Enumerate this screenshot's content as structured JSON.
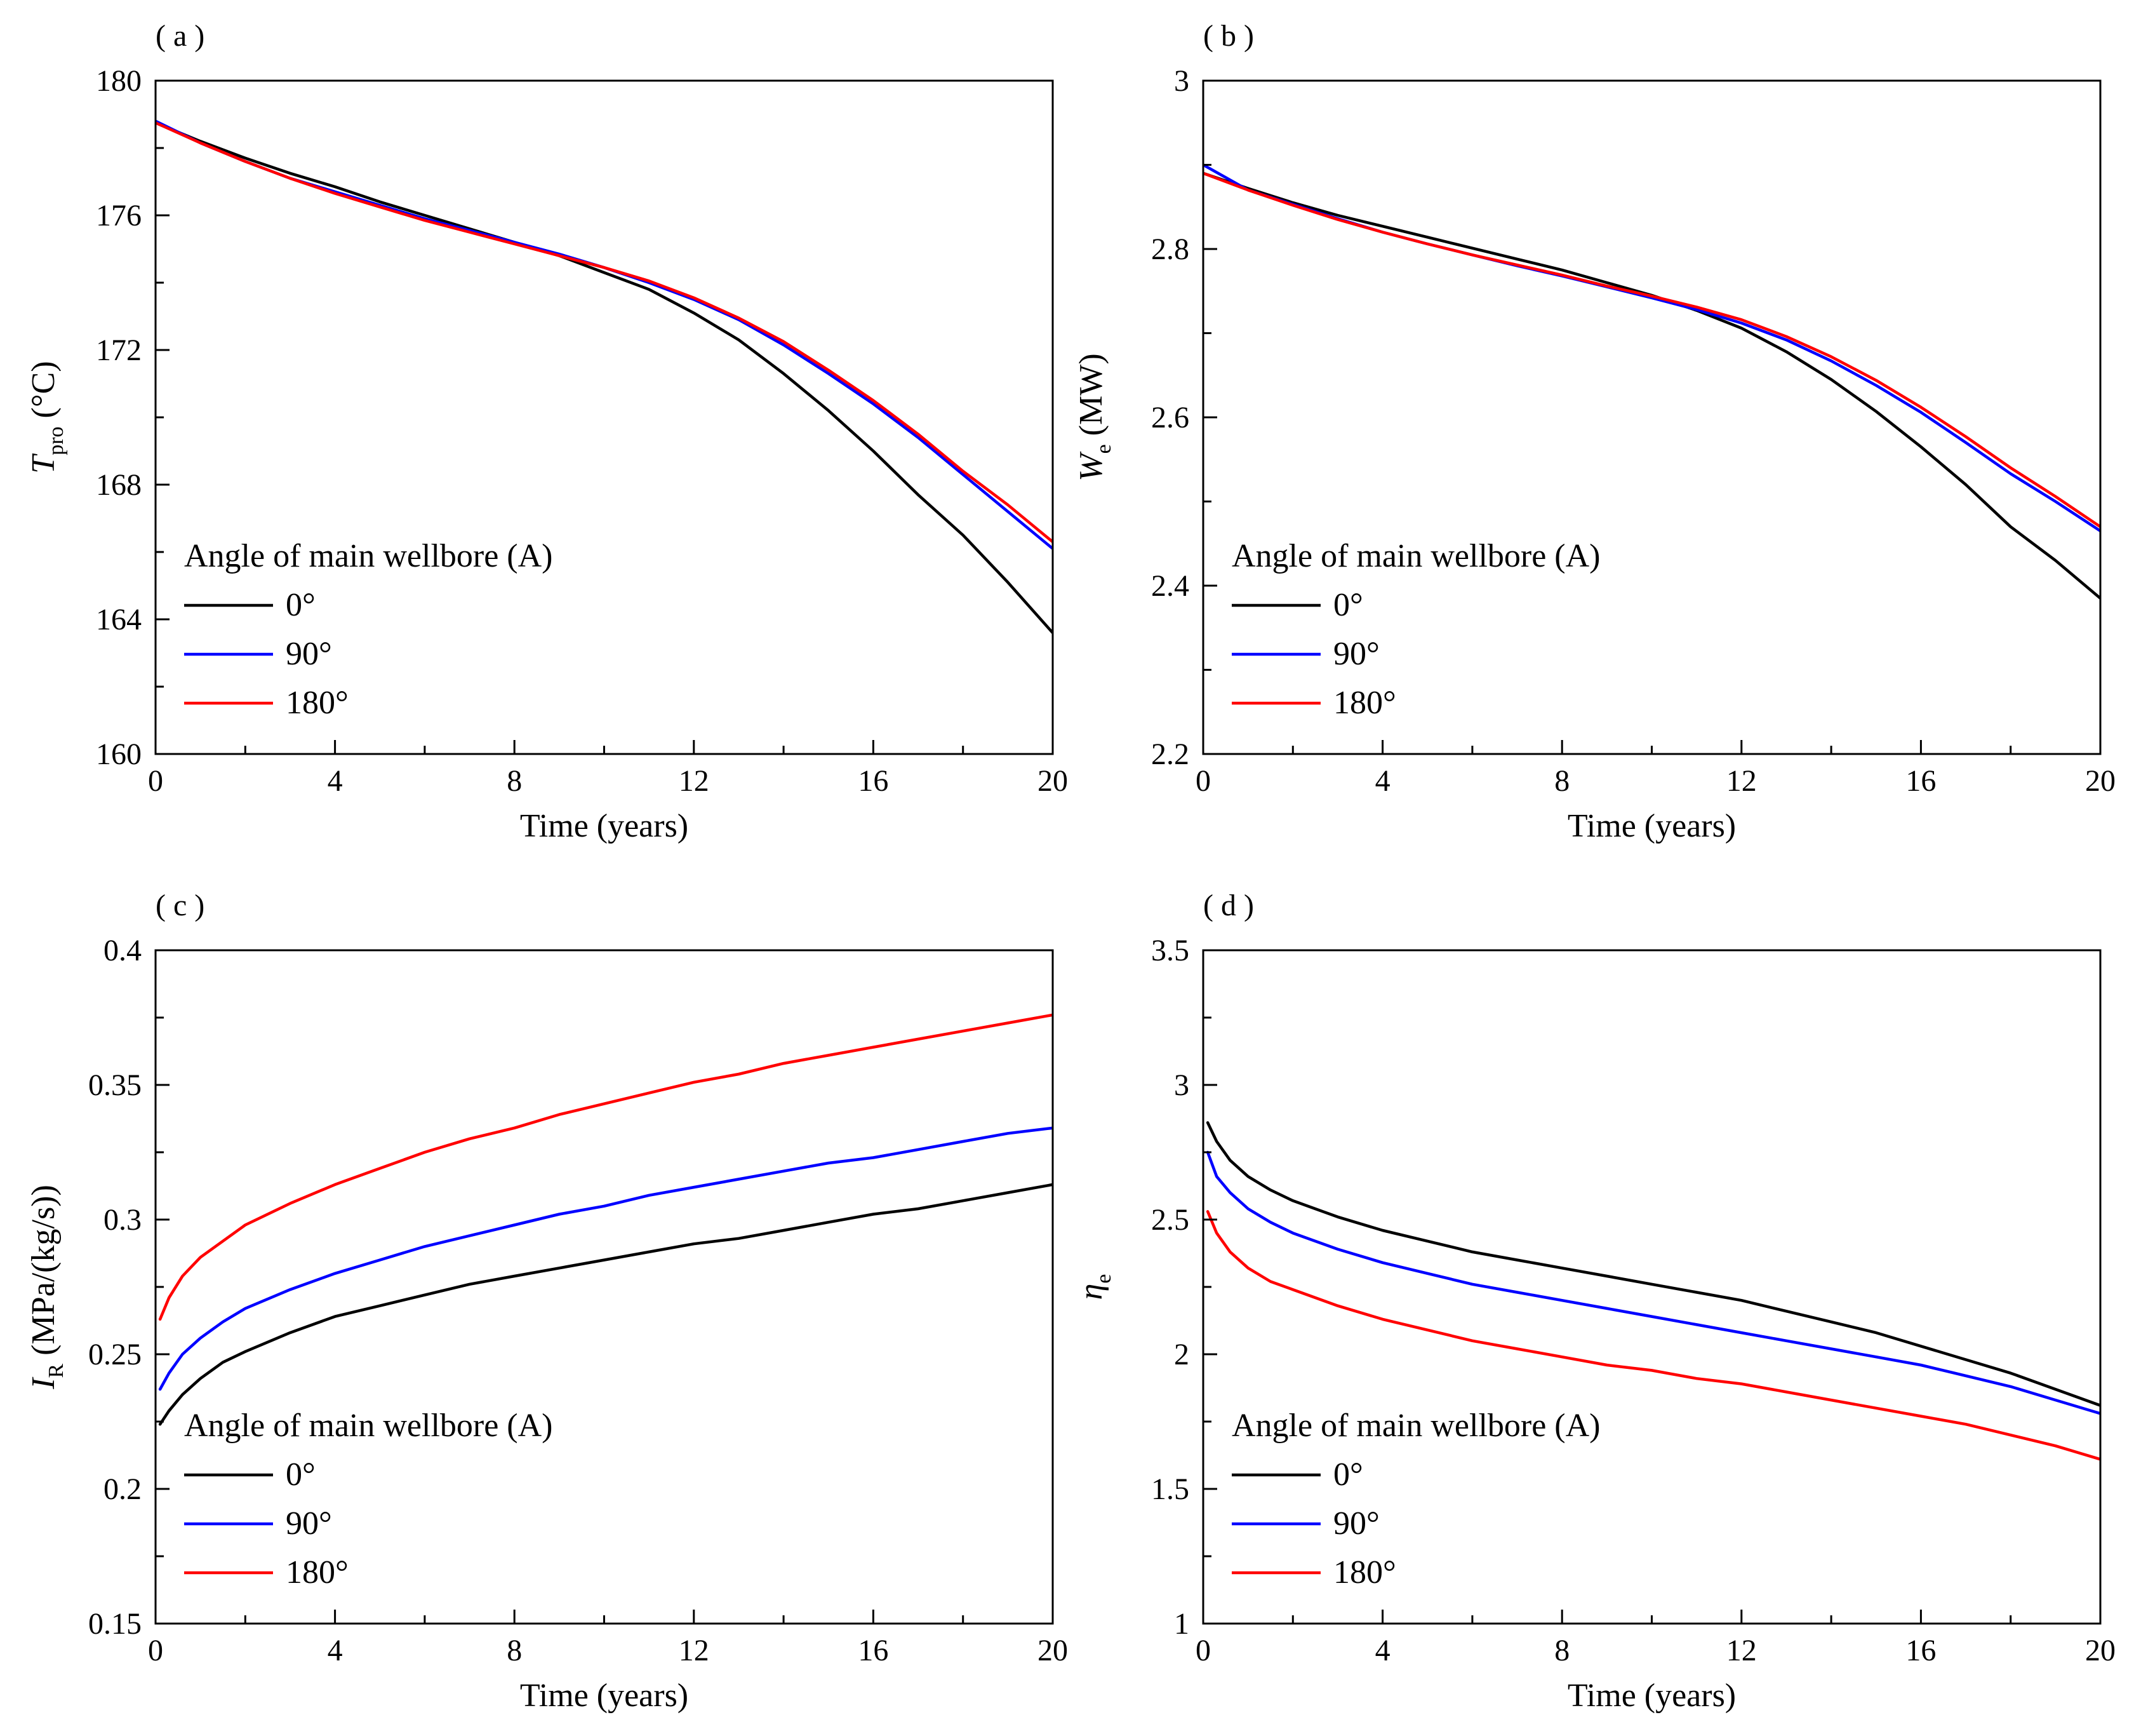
{
  "chart_data": [
    {
      "type": "line",
      "panel_label": "( a )",
      "title": "",
      "xlabel": "Time (years)",
      "ylabel": {
        "main": "T",
        "sub": "pro",
        "unit": " (°C)"
      },
      "xlim": [
        0,
        20
      ],
      "ylim": [
        160,
        180
      ],
      "xticks": [
        0,
        4,
        8,
        12,
        16,
        20
      ],
      "xtick_labels": [
        "0",
        "4",
        "8",
        "12",
        "16",
        "20"
      ],
      "yticks": [
        160,
        164,
        168,
        172,
        176,
        180
      ],
      "ytick_labels": [
        "160",
        "164",
        "168",
        "172",
        "176",
        "180"
      ],
      "legend": {
        "title": "Angle of main wellbore (A)",
        "placement": "lower-left"
      },
      "x": [
        0,
        1,
        2,
        3,
        4,
        5,
        6,
        7,
        8,
        9,
        10,
        11,
        12,
        13,
        14,
        15,
        16,
        17,
        18,
        19,
        20
      ],
      "series": [
        {
          "name": "0°",
          "color": "#000000",
          "values": [
            178.75,
            178.2,
            177.7,
            177.25,
            176.85,
            176.4,
            176.0,
            175.6,
            175.2,
            174.8,
            174.3,
            173.8,
            173.1,
            172.3,
            171.3,
            170.2,
            169.0,
            167.7,
            166.5,
            165.1,
            163.6
          ]
        },
        {
          "name": "90°",
          "color": "#0000ff",
          "values": [
            178.8,
            178.15,
            177.6,
            177.1,
            176.7,
            176.3,
            175.9,
            175.55,
            175.2,
            174.85,
            174.45,
            174.0,
            173.5,
            172.9,
            172.15,
            171.3,
            170.4,
            169.4,
            168.3,
            167.2,
            166.1
          ]
        },
        {
          "name": "180°",
          "color": "#ff0000",
          "values": [
            178.75,
            178.15,
            177.6,
            177.1,
            176.65,
            176.25,
            175.85,
            175.5,
            175.15,
            174.8,
            174.45,
            174.05,
            173.55,
            172.95,
            172.25,
            171.4,
            170.5,
            169.5,
            168.4,
            167.4,
            166.3
          ]
        }
      ]
    },
    {
      "type": "line",
      "panel_label": "( b )",
      "title": "",
      "xlabel": "Time (years)",
      "ylabel": {
        "main": "W",
        "sub": "e",
        "unit": " (MW)"
      },
      "xlim": [
        0,
        20
      ],
      "ylim": [
        2.2,
        3.0
      ],
      "xticks": [
        0,
        4,
        8,
        12,
        16,
        20
      ],
      "xtick_labels": [
        "0",
        "4",
        "8",
        "12",
        "16",
        "20"
      ],
      "yticks": [
        2.2,
        2.4,
        2.6,
        2.8,
        3.0
      ],
      "ytick_labels": [
        "2.2",
        "2.4",
        "2.6",
        "2.8",
        "3"
      ],
      "legend": {
        "title": "Angle of main wellbore (A)",
        "placement": "lower-left"
      },
      "x": [
        0,
        1,
        2,
        3,
        4,
        5,
        6,
        7,
        8,
        9,
        10,
        11,
        12,
        13,
        14,
        15,
        16,
        17,
        18,
        19,
        20
      ],
      "series": [
        {
          "name": "0°",
          "color": "#000000",
          "values": [
            2.89,
            2.872,
            2.855,
            2.84,
            2.827,
            2.814,
            2.801,
            2.788,
            2.775,
            2.76,
            2.745,
            2.727,
            2.706,
            2.678,
            2.645,
            2.607,
            2.565,
            2.52,
            2.47,
            2.43,
            2.385
          ]
        },
        {
          "name": "90°",
          "color": "#0000ff",
          "values": [
            2.9,
            2.87,
            2.853,
            2.836,
            2.82,
            2.806,
            2.793,
            2.78,
            2.768,
            2.755,
            2.742,
            2.728,
            2.712,
            2.692,
            2.667,
            2.638,
            2.606,
            2.57,
            2.533,
            2.5,
            2.465
          ]
        },
        {
          "name": "180°",
          "color": "#ff0000",
          "values": [
            2.89,
            2.87,
            2.852,
            2.835,
            2.82,
            2.806,
            2.793,
            2.781,
            2.769,
            2.756,
            2.744,
            2.731,
            2.716,
            2.696,
            2.672,
            2.644,
            2.612,
            2.577,
            2.54,
            2.506,
            2.47
          ]
        }
      ]
    },
    {
      "type": "line",
      "panel_label": "( c )",
      "title": "",
      "xlabel": "Time (years)",
      "ylabel": {
        "main": "I",
        "sub": "R",
        "unit": " (MPa/(kg/s))"
      },
      "xlim": [
        0,
        20
      ],
      "ylim": [
        0.15,
        0.4
      ],
      "xticks": [
        0,
        4,
        8,
        12,
        16,
        20
      ],
      "xtick_labels": [
        "0",
        "4",
        "8",
        "12",
        "16",
        "20"
      ],
      "yticks": [
        0.15,
        0.2,
        0.25,
        0.3,
        0.35,
        0.4
      ],
      "ytick_labels": [
        "0.15",
        "0.2",
        "0.25",
        "0.3",
        "0.35",
        "0.4"
      ],
      "legend": {
        "title": "Angle of main wellbore (A)",
        "placement": "lower-left"
      },
      "x": [
        0.1,
        0.3,
        0.6,
        1,
        1.5,
        2,
        3,
        4,
        5,
        6,
        7,
        8,
        9,
        10,
        11,
        12,
        13,
        14,
        15,
        16,
        17,
        18,
        19,
        20
      ],
      "series": [
        {
          "name": "0°",
          "color": "#000000",
          "values": [
            0.224,
            0.229,
            0.235,
            0.241,
            0.247,
            0.251,
            0.258,
            0.264,
            0.268,
            0.272,
            0.276,
            0.279,
            0.282,
            0.285,
            0.288,
            0.291,
            0.293,
            0.296,
            0.299,
            0.302,
            0.304,
            0.307,
            0.31,
            0.313
          ]
        },
        {
          "name": "90°",
          "color": "#0000ff",
          "values": [
            0.237,
            0.243,
            0.25,
            0.256,
            0.262,
            0.267,
            0.274,
            0.28,
            0.285,
            0.29,
            0.294,
            0.298,
            0.302,
            0.305,
            0.309,
            0.312,
            0.315,
            0.318,
            0.321,
            0.323,
            0.326,
            0.329,
            0.332,
            0.334
          ]
        },
        {
          "name": "180°",
          "color": "#ff0000",
          "values": [
            0.263,
            0.271,
            0.279,
            0.286,
            0.292,
            0.298,
            0.306,
            0.313,
            0.319,
            0.325,
            0.33,
            0.334,
            0.339,
            0.343,
            0.347,
            0.351,
            0.354,
            0.358,
            0.361,
            0.364,
            0.367,
            0.37,
            0.373,
            0.376
          ]
        }
      ]
    },
    {
      "type": "line",
      "panel_label": "( d )",
      "title": "",
      "xlabel": "Time (years)",
      "ylabel": {
        "main": "η",
        "sub": "e",
        "unit": ""
      },
      "xlim": [
        0,
        20
      ],
      "ylim": [
        1.0,
        3.5
      ],
      "xticks": [
        0,
        4,
        8,
        12,
        16,
        20
      ],
      "xtick_labels": [
        "0",
        "4",
        "8",
        "12",
        "16",
        "20"
      ],
      "yticks": [
        1.0,
        1.5,
        2.0,
        2.5,
        3.0,
        3.5
      ],
      "ytick_labels": [
        "1",
        "1.5",
        "2",
        "2.5",
        "3",
        "3.5"
      ],
      "legend": {
        "title": "Angle of main wellbore (A)",
        "placement": "lower-left"
      },
      "x": [
        0.1,
        0.3,
        0.6,
        1,
        1.5,
        2,
        3,
        4,
        5,
        6,
        7,
        8,
        9,
        10,
        11,
        12,
        13,
        14,
        15,
        16,
        17,
        18,
        19,
        20
      ],
      "series": [
        {
          "name": "0°",
          "color": "#000000",
          "values": [
            2.86,
            2.79,
            2.72,
            2.66,
            2.61,
            2.57,
            2.51,
            2.46,
            2.42,
            2.38,
            2.35,
            2.32,
            2.29,
            2.26,
            2.23,
            2.2,
            2.16,
            2.12,
            2.08,
            2.03,
            1.98,
            1.93,
            1.87,
            1.81
          ]
        },
        {
          "name": "90°",
          "color": "#0000ff",
          "values": [
            2.75,
            2.66,
            2.6,
            2.54,
            2.49,
            2.45,
            2.39,
            2.34,
            2.3,
            2.26,
            2.23,
            2.2,
            2.17,
            2.14,
            2.11,
            2.08,
            2.05,
            2.02,
            1.99,
            1.96,
            1.92,
            1.88,
            1.83,
            1.78
          ]
        },
        {
          "name": "180°",
          "color": "#ff0000",
          "values": [
            2.53,
            2.45,
            2.38,
            2.32,
            2.27,
            2.24,
            2.18,
            2.13,
            2.09,
            2.05,
            2.02,
            1.99,
            1.96,
            1.94,
            1.91,
            1.89,
            1.86,
            1.83,
            1.8,
            1.77,
            1.74,
            1.7,
            1.66,
            1.61
          ]
        }
      ]
    }
  ]
}
